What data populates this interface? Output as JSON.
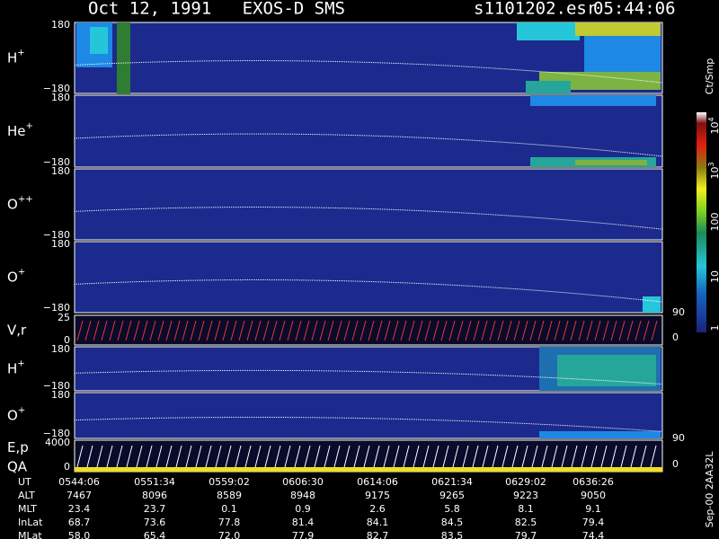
{
  "header": {
    "title": "Oct 12, 1991   EXOS-D SMS",
    "file": "s1101202.esr",
    "time": "05:44:06"
  },
  "panels": [
    {
      "label": "H",
      "charge": "+",
      "ticks": [
        "180",
        "−180"
      ]
    },
    {
      "label": "He",
      "charge": "+",
      "ticks": [
        "180",
        "−180"
      ]
    },
    {
      "label": "O",
      "charge": "++",
      "ticks": [
        "180",
        "−180"
      ]
    },
    {
      "label": "O",
      "charge": "+",
      "ticks": [
        "180",
        "−180"
      ],
      "right_ticks": [
        "90"
      ]
    },
    {
      "label": "V,r",
      "ticks": [
        "25",
        "0"
      ],
      "right_ticks": [
        "0"
      ]
    },
    {
      "label": "H",
      "charge": "+",
      "ticks": [
        "180",
        "−180"
      ]
    },
    {
      "label": "O",
      "charge": "+",
      "ticks": [
        "180",
        "−180"
      ],
      "right_ticks": [
        "90"
      ]
    },
    {
      "label": "E,p",
      "label2": "QA",
      "ticks": [
        "4000",
        "0"
      ],
      "right_ticks": [
        "0"
      ]
    }
  ],
  "colorbar": {
    "title": "Ct/Smp",
    "labels": [
      {
        "base": "10",
        "exp": "4"
      },
      {
        "base": "10",
        "exp": "3"
      },
      {
        "base": "100"
      },
      {
        "base": "10"
      },
      {
        "base": "1"
      }
    ]
  },
  "stamp": "Sep-00 2AA32L",
  "table": {
    "rows": [
      {
        "label": "UT",
        "values": [
          "0544:06",
          "0551:34",
          "0559:02",
          "0606:30",
          "0614:06",
          "0621:34",
          "0629:02",
          "0636:26"
        ]
      },
      {
        "label": "ALT",
        "values": [
          "7467",
          "8096",
          "8589",
          "8948",
          "9175",
          "9265",
          "9223",
          "9050"
        ]
      },
      {
        "label": "MLT",
        "values": [
          "23.4",
          "23.7",
          "0.1",
          "0.9",
          "2.6",
          "5.8",
          "8.1",
          "9.1"
        ]
      },
      {
        "label": "InLat",
        "values": [
          "68.7",
          "73.6",
          "77.8",
          "81.4",
          "84.1",
          "84.5",
          "82.5",
          "79.4"
        ]
      },
      {
        "label": "MLat",
        "values": [
          "58.0",
          "65.4",
          "72.0",
          "77.9",
          "82.7",
          "83.5",
          "79.7",
          "74.4"
        ]
      }
    ]
  }
}
